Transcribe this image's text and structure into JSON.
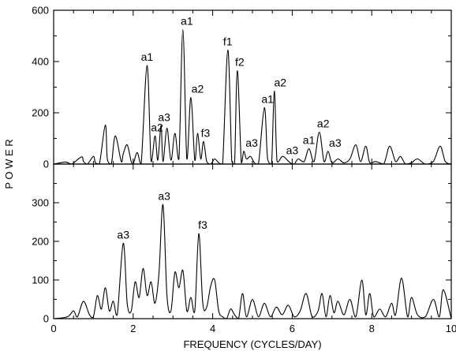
{
  "chart_data": [
    {
      "type": "line",
      "ylim": [
        0,
        600
      ],
      "xlim": [
        0,
        10
      ],
      "yticks": [
        0,
        200,
        400,
        600
      ],
      "ytick_labels": [
        "0",
        "200",
        "400",
        "600"
      ],
      "x": [
        0.0,
        0.3,
        0.45,
        0.7,
        0.75,
        0.85,
        1.0,
        1.05,
        1.15,
        1.3,
        1.35,
        1.45,
        1.55,
        1.7,
        1.75,
        1.85,
        1.95,
        2.0,
        2.1,
        2.2,
        2.35,
        2.45,
        2.55,
        2.62,
        2.7,
        2.75,
        2.85,
        2.95,
        3.05,
        3.15,
        3.25,
        3.35,
        3.45,
        3.55,
        3.62,
        3.7,
        3.77,
        3.85,
        3.95,
        4.05,
        4.15,
        4.25,
        4.38,
        4.48,
        4.55,
        4.62,
        4.72,
        4.78,
        4.85,
        4.95,
        5.05,
        5.15,
        5.3,
        5.38,
        5.48,
        5.55,
        5.62,
        5.75,
        5.85,
        5.95,
        6.05,
        6.15,
        6.3,
        6.42,
        6.55,
        6.68,
        6.8,
        6.9,
        7.0,
        7.15,
        7.3,
        7.45,
        7.6,
        7.72,
        7.85,
        7.95,
        8.1,
        8.3,
        8.45,
        8.6,
        8.72,
        8.85,
        9.0,
        9.15,
        9.35,
        9.55,
        9.72,
        9.85,
        10.0
      ],
      "y": [
        0,
        8,
        0,
        28,
        10,
        0,
        30,
        5,
        0,
        152,
        20,
        0,
        110,
        10,
        40,
        75,
        10,
        0,
        45,
        0,
        385,
        10,
        110,
        15,
        150,
        10,
        140,
        15,
        120,
        20,
        525,
        20,
        260,
        15,
        120,
        20,
        88,
        10,
        0,
        20,
        5,
        0,
        445,
        10,
        0,
        365,
        5,
        50,
        20,
        30,
        5,
        0,
        220,
        20,
        0,
        285,
        10,
        30,
        20,
        5,
        0,
        20,
        10,
        60,
        10,
        125,
        10,
        50,
        5,
        20,
        5,
        20,
        75,
        10,
        70,
        5,
        10,
        0,
        70,
        10,
        30,
        0,
        5,
        20,
        0,
        10,
        70,
        10,
        0
      ]
    },
    {
      "type": "line",
      "ylim": [
        0,
        400
      ],
      "xlim": [
        0,
        10
      ],
      "xlabel": "FREQUENCY (CYCLES/DAY)",
      "ylabel": "P O W E R",
      "yticks": [
        0,
        100,
        200,
        300
      ],
      "ytick_labels": [
        "0",
        "100",
        "200",
        "300"
      ],
      "xticks": [
        0,
        2,
        4,
        6,
        8,
        10
      ],
      "xtick_labels": [
        "0",
        "2",
        "4",
        "6",
        "8",
        "10"
      ],
      "x": [
        0.0,
        0.35,
        0.5,
        0.6,
        0.75,
        0.9,
        1.0,
        1.1,
        1.2,
        1.3,
        1.4,
        1.5,
        1.6,
        1.75,
        1.85,
        1.95,
        2.05,
        2.15,
        2.25,
        2.35,
        2.45,
        2.55,
        2.65,
        2.75,
        2.85,
        2.95,
        3.05,
        3.15,
        3.25,
        3.35,
        3.45,
        3.55,
        3.65,
        3.75,
        3.85,
        3.95,
        4.05,
        4.15,
        4.25,
        4.35,
        4.45,
        4.55,
        4.65,
        4.75,
        4.85,
        5.0,
        5.15,
        5.3,
        5.45,
        5.6,
        5.75,
        5.9,
        6.05,
        6.2,
        6.35,
        6.5,
        6.65,
        6.75,
        6.85,
        6.95,
        7.05,
        7.15,
        7.3,
        7.45,
        7.6,
        7.75,
        7.85,
        7.95,
        8.05,
        8.2,
        8.35,
        8.5,
        8.6,
        8.75,
        8.9,
        9.0,
        9.15,
        9.35,
        9.55,
        9.7,
        9.8,
        10.0
      ],
      "y": [
        0,
        5,
        20,
        5,
        45,
        10,
        5,
        60,
        25,
        80,
        20,
        45,
        10,
        195,
        40,
        20,
        95,
        55,
        130,
        60,
        95,
        40,
        120,
        295,
        60,
        20,
        120,
        80,
        125,
        20,
        55,
        20,
        220,
        40,
        30,
        85,
        100,
        20,
        5,
        0,
        25,
        10,
        0,
        65,
        5,
        50,
        5,
        40,
        5,
        30,
        10,
        35,
        5,
        20,
        65,
        5,
        20,
        65,
        5,
        60,
        15,
        45,
        10,
        50,
        5,
        100,
        10,
        65,
        5,
        25,
        5,
        40,
        10,
        105,
        5,
        55,
        10,
        5,
        50,
        5,
        75,
        0
      ]
    }
  ],
  "annotations": {
    "top": [
      {
        "text": "a1",
        "x": 2.35,
        "y": 385
      },
      {
        "text": "a2",
        "x": 2.6,
        "y": 110
      },
      {
        "text": "a3",
        "x": 2.78,
        "y": 150
      },
      {
        "text": "a1",
        "x": 3.35,
        "y": 525
      },
      {
        "text": "a2",
        "x": 3.62,
        "y": 260
      },
      {
        "text": "f3",
        "x": 3.82,
        "y": 88
      },
      {
        "text": "f1",
        "x": 4.38,
        "y": 445
      },
      {
        "text": "f2",
        "x": 4.68,
        "y": 365
      },
      {
        "text": "a3",
        "x": 4.98,
        "y": 50
      },
      {
        "text": "a1",
        "x": 5.38,
        "y": 220
      },
      {
        "text": "a2",
        "x": 5.7,
        "y": 285
      },
      {
        "text": "a3",
        "x": 6.0,
        "y": 20
      },
      {
        "text": "a1",
        "x": 6.42,
        "y": 60
      },
      {
        "text": "a2",
        "x": 6.78,
        "y": 125
      },
      {
        "text": "a3",
        "x": 7.08,
        "y": 50
      }
    ],
    "bottom": [
      {
        "text": "a3",
        "x": 1.75,
        "y": 195
      },
      {
        "text": "a3",
        "x": 2.78,
        "y": 295
      },
      {
        "text": "f3",
        "x": 3.75,
        "y": 220
      }
    ]
  }
}
